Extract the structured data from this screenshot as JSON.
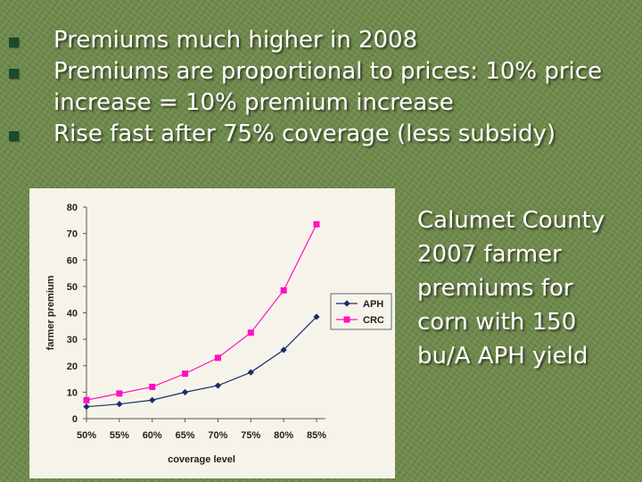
{
  "bullets": [
    "Premiums much higher in 2008",
    "Premiums are proportional to prices: 10% price increase = 10% premium increase",
    "Rise fast after 75% coverage (less subsidy)"
  ],
  "caption_lines": [
    "Calumet County",
    "2007 farmer",
    "premiums for",
    "corn with 150",
    "bu/A APH yield"
  ],
  "colors": {
    "background": "#6f8a4b",
    "bullet": "#1a4a2a",
    "aph": "#1c2a6b",
    "crc": "#ff10c0"
  },
  "chart_data": {
    "type": "line",
    "title": "",
    "xlabel": "coverage level",
    "ylabel": "farmer premium",
    "categories": [
      "50%",
      "55%",
      "60%",
      "65%",
      "70%",
      "75%",
      "80%",
      "85%"
    ],
    "ylim": [
      0,
      80
    ],
    "yticks": [
      0,
      10,
      20,
      30,
      40,
      50,
      60,
      70,
      80
    ],
    "grid": false,
    "legend": "right",
    "series": [
      {
        "name": "APH",
        "marker": "diamond",
        "values": [
          4.5,
          5.5,
          7,
          10,
          12.5,
          17.5,
          26,
          38.5
        ]
      },
      {
        "name": "CRC",
        "marker": "square",
        "values": [
          7,
          9.5,
          12,
          17,
          23,
          32.5,
          48.5,
          73.5
        ]
      }
    ]
  }
}
